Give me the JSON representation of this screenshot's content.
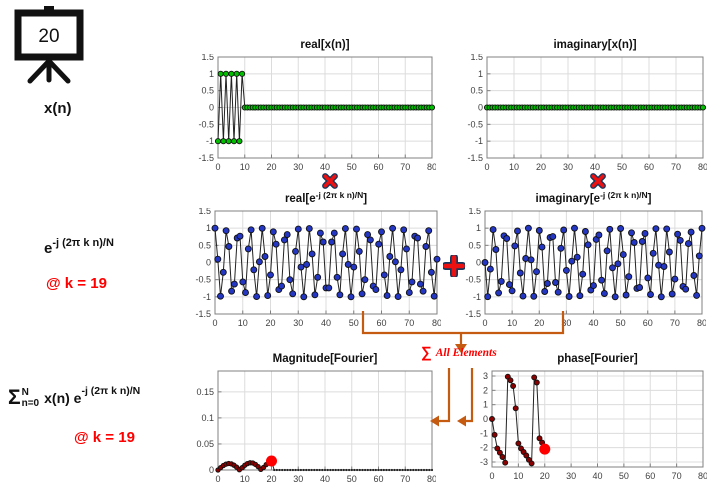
{
  "colors": {
    "accent_red": "#ff0000",
    "orange": "#c55a11",
    "navy_outline": "#17375e",
    "green_marker": "#00c000",
    "blue_marker": "#2336c4",
    "dark_red_marker": "#8b0000",
    "marker_edge": "#111111",
    "grid": "#dcdcdc",
    "axis": "#808080",
    "tick_text": "#404040",
    "line": "#222222"
  },
  "icon": {
    "label": "20"
  },
  "icons": {
    "multiply": "✖",
    "add": "✚",
    "sum": "∑",
    "board": "projector-screen"
  },
  "labels": {
    "row1": "x(n)",
    "row2": {
      "base": "e",
      "exp": "-j (2π k n)/N",
      "at_k": "@ k = 19"
    },
    "row3": {
      "sigma": "Σ",
      "sup": "N",
      "sub": "n=0",
      "mid": "x(n) e",
      "exp": "-j (2π k n)/N",
      "at_k": "@ k = 19"
    }
  },
  "flow": {
    "sum_symbol": "∑",
    "sum_text": "All Elements"
  },
  "chart_data": [
    {
      "id": "real-xn",
      "type": "line",
      "title": "real[x(n)]",
      "xlim": [
        0,
        80
      ],
      "ylim": [
        -1.5,
        1.5
      ],
      "xticks": [
        0,
        10,
        20,
        30,
        40,
        50,
        60,
        70,
        80
      ],
      "yticks": [
        -1.5,
        -1,
        -0.5,
        0,
        0.5,
        1,
        1.5
      ],
      "grid": true,
      "legend": "none",
      "marker": {
        "fill": "#00c000",
        "r": 2.6
      },
      "series": {
        "gen": "alt_pulse",
        "first": -1,
        "pulse_len": 10,
        "total": 81,
        "note": "x(n)=±1 alternating for n=0..9, 0 for n=10..80"
      }
    },
    {
      "id": "imag-xn",
      "type": "line",
      "title": "imaginary[x(n)]",
      "xlim": [
        0,
        80
      ],
      "ylim": [
        -1.5,
        1.5
      ],
      "xticks": [
        0,
        10,
        20,
        30,
        40,
        50,
        60,
        70,
        80
      ],
      "yticks": [
        -1.5,
        -1,
        -0.5,
        0,
        0.5,
        1,
        1.5
      ],
      "grid": true,
      "legend": "none",
      "marker": {
        "fill": "#00c000",
        "r": 2.6
      },
      "series": {
        "gen": "zeros",
        "total": 81,
        "note": "all zeros"
      }
    },
    {
      "id": "real-exp",
      "type": "line",
      "title_parts": {
        "prefix": "real[e",
        "sup": "-j (2π k n)/N",
        "suffix": "]"
      },
      "xlim": [
        0,
        80
      ],
      "ylim": [
        -1.5,
        1.5
      ],
      "xticks": [
        0,
        10,
        20,
        30,
        40,
        50,
        60,
        70,
        80
      ],
      "yticks": [
        -1.5,
        -1,
        -0.5,
        0,
        0.5,
        1,
        1.5
      ],
      "grid": true,
      "legend": "none",
      "marker": {
        "fill": "#2336c4",
        "r": 3
      },
      "series": {
        "gen": "dft_real",
        "k": 19,
        "N": 81,
        "total": 81,
        "note": "cos(2π·19·n/81), n=0..80"
      }
    },
    {
      "id": "imag-exp",
      "type": "line",
      "title_parts": {
        "prefix": "imaginary[e",
        "sup": "-j (2π k n)/N",
        "suffix": "]"
      },
      "xlim": [
        0,
        80
      ],
      "ylim": [
        -1.5,
        1.5
      ],
      "xticks": [
        0,
        10,
        20,
        30,
        40,
        50,
        60,
        70,
        80
      ],
      "yticks": [
        -1.5,
        -1,
        -0.5,
        0,
        0.5,
        1,
        1.5
      ],
      "grid": true,
      "legend": "none",
      "marker": {
        "fill": "#2336c4",
        "r": 3
      },
      "series": {
        "gen": "dft_imag",
        "k": 19,
        "N": 81,
        "total": 81,
        "note": "-sin(2π·19·n/81), n=0..80"
      }
    },
    {
      "id": "magnitude",
      "type": "line",
      "title": "Magnitude[Fourier]",
      "xlim": [
        0,
        80
      ],
      "ylim": [
        0,
        0.19
      ],
      "xticks": [
        0,
        10,
        20,
        30,
        40,
        50,
        60,
        70,
        80
      ],
      "yticks": [
        0,
        0.05,
        0.1,
        0.15
      ],
      "grid": true,
      "legend": "none",
      "marker": {
        "fill": "#8b0000",
        "r": 2.2
      },
      "series": {
        "gen": "explicit",
        "y": [
          0,
          0.0047,
          0.0087,
          0.0114,
          0.0125,
          0.0117,
          0.0093,
          0.0053,
          0.0005,
          0.0045,
          0.009,
          0.0122,
          0.0138,
          0.0134,
          0.0108,
          0.0066,
          0.0012,
          0.0048,
          0.0103,
          0.0147
        ]
      },
      "big_dot": {
        "x": 20,
        "y": 0.0172,
        "color": "#ff0000",
        "r": 5.5
      },
      "tail_zeros": {
        "from": 21,
        "to": 80
      }
    },
    {
      "id": "phase",
      "type": "line",
      "title": "phase[Fourier]",
      "xlim": [
        0,
        80
      ],
      "ylim": [
        -3.35,
        3.35
      ],
      "xticks": [
        0,
        10,
        20,
        30,
        40,
        50,
        60,
        70,
        80
      ],
      "yticks": [
        -3,
        -2,
        -1,
        0,
        1,
        2,
        3
      ],
      "grid": true,
      "legend": "none",
      "marker": {
        "fill": "#8b0000",
        "r": 2.5
      },
      "series": {
        "gen": "explicit",
        "y": [
          0,
          -1.1,
          -2.05,
          -2.35,
          -2.65,
          -3.05,
          2.95,
          2.7,
          2.3,
          0.75,
          -1.7,
          -2.05,
          -2.3,
          -2.55,
          -2.85,
          -3.1,
          2.9,
          2.55,
          -1.35,
          -1.65
        ]
      },
      "big_dot": {
        "x": 20,
        "y": -2.1,
        "color": "#ff0000",
        "r": 5.5
      }
    }
  ]
}
